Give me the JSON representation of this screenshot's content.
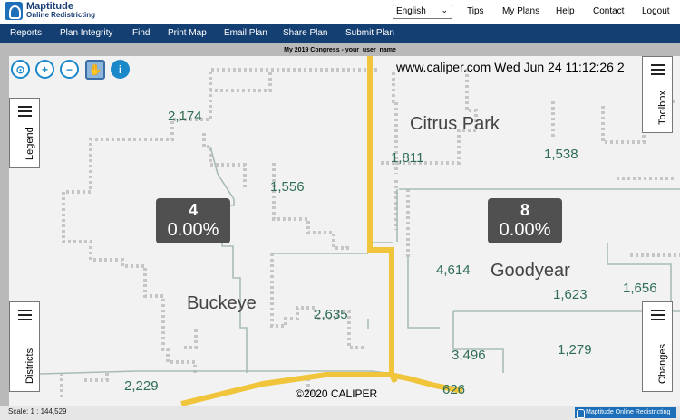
{
  "app": {
    "title": "Maptitude",
    "subtitle": "Online Redistricting"
  },
  "header": {
    "language": "English",
    "links": [
      "Tips",
      "My Plans",
      "Help",
      "Contact",
      "Logout"
    ]
  },
  "nav": {
    "items": [
      "Reports",
      "Plan Integrity",
      "Find",
      "Print Map",
      "Email Plan",
      "Share Plan",
      "Submit Plan"
    ]
  },
  "map": {
    "title": "My 2019 Congress - your_user_name",
    "stamp": "www.caliper.com Wed Jun 24 11:12:26 2",
    "copyright": "©2020 CALIPER",
    "places": [
      "Citrus Park",
      "Goodyear",
      "Buckeye"
    ],
    "populations": [
      "2,174",
      "1,811",
      "1,538",
      "1,556",
      "4,614",
      "1,623",
      "1,656",
      "2,635",
      "3,496",
      "1,279",
      "2,229",
      "626"
    ],
    "districts": [
      {
        "number": "4",
        "percent": "0.00%"
      },
      {
        "number": "8",
        "percent": "0.00%"
      }
    ]
  },
  "toolbar": {
    "icons": [
      "zoom-extent-icon",
      "zoom-in-icon",
      "zoom-out-icon",
      "pan-hand-icon",
      "info-icon"
    ]
  },
  "panels": {
    "legend": "Legend",
    "districts": "Districts",
    "toolbox": "Toolbox",
    "changes": "Changes"
  },
  "status": {
    "scale": "Scale: 1 : 144,529",
    "brand": "Maptitude Online Redistricting"
  },
  "colors": {
    "navbar": "#143f73",
    "highway": "#f0c53c",
    "boundary": "#c2c2c2",
    "badge": "#505050",
    "population_text": "#2f6e55",
    "accent": "#1a88c9"
  }
}
